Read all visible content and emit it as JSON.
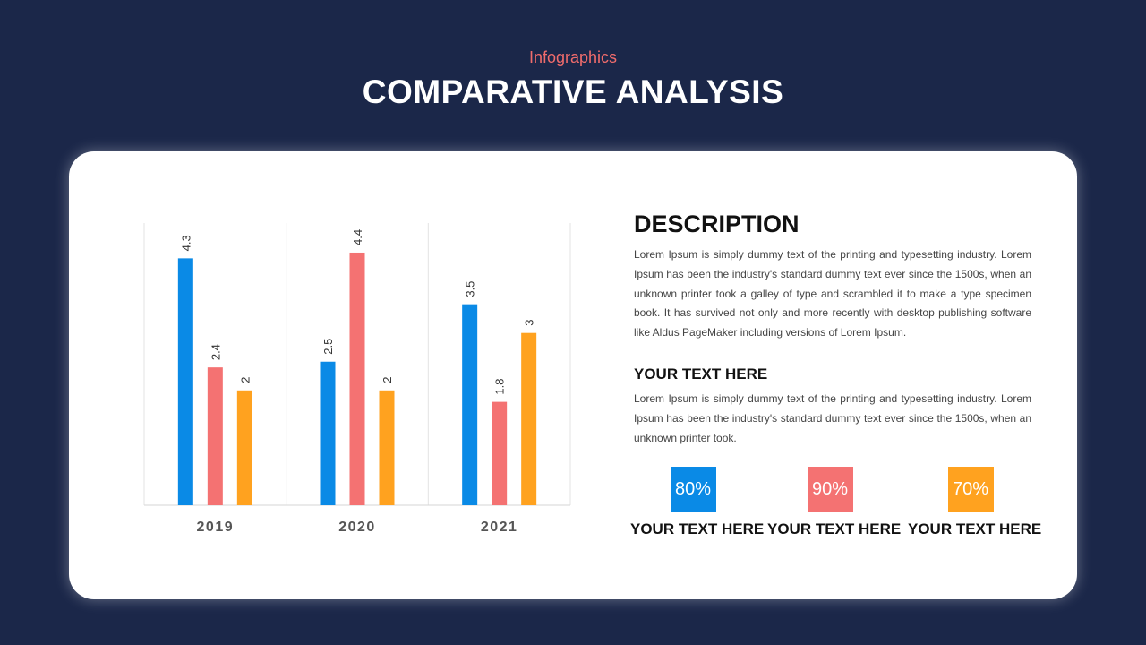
{
  "header": {
    "subtitle": "Infographics",
    "title": "COMPARATIVE ANALYSIS"
  },
  "description": {
    "heading": "DESCRIPTION",
    "paragraph": "Lorem Ipsum is simply dummy text of the printing and typesetting industry. Lorem Ipsum has been the industry's standard dummy text ever since the 1500s, when an unknown printer took a galley of type and scrambled it to make a type specimen book. It has survived not only and more recently with desktop publishing software like Aldus PageMaker including versions of Lorem Ipsum.",
    "subheading": "YOUR TEXT HERE",
    "subparagraph": "Lorem Ipsum is simply dummy text of the printing and typesetting industry. Lorem Ipsum has been the industry's standard dummy text ever since the 1500s, when an unknown printer took."
  },
  "stats": [
    {
      "value": "80%",
      "label": "YOUR TEXT HERE",
      "color": "#0a8ae6"
    },
    {
      "value": "90%",
      "label": "YOUR TEXT HERE",
      "color": "#f47272"
    },
    {
      "value": "70%",
      "label": "YOUR TEXT HERE",
      "color": "#ffa21f"
    }
  ],
  "chart_data": {
    "type": "bar",
    "categories": [
      "2019",
      "2020",
      "2021"
    ],
    "series": [
      {
        "values": [
          4.3,
          2.5,
          3.5
        ],
        "color": "#0a8ae6"
      },
      {
        "values": [
          2.4,
          4.4,
          1.8
        ],
        "color": "#f47272"
      },
      {
        "values": [
          2,
          2,
          3
        ],
        "color": "#ffa21f"
      }
    ],
    "ylim": [
      0,
      5
    ],
    "grid": "vertical-category-separators",
    "legend": "none",
    "title": "",
    "xlabel": "",
    "ylabel": ""
  }
}
